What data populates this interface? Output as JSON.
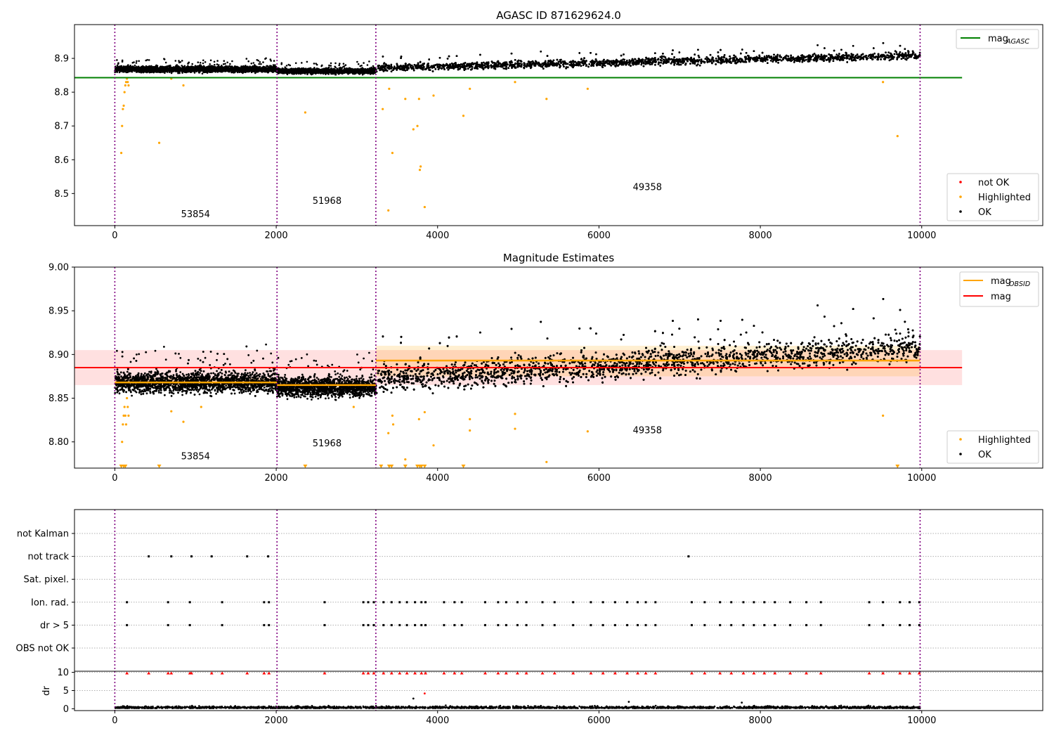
{
  "figure": {
    "background": "#ffffff"
  },
  "chart_data": [
    {
      "id": "p1",
      "type": "scatter",
      "title": "AGASC ID 871629624.0",
      "xlim": [
        -500,
        11500
      ],
      "ylim": [
        8.405,
        9.0
      ],
      "xticks": [
        0,
        2000,
        4000,
        6000,
        8000,
        10000
      ],
      "xtick_labels": [
        "0",
        "2000",
        "4000",
        "6000",
        "8000",
        "10000"
      ],
      "yticks": [
        8.5,
        8.6,
        8.7,
        8.8,
        8.9
      ],
      "ytick_labels": [
        "8.5",
        "8.6",
        "8.7",
        "8.8",
        "8.9"
      ],
      "obsid_boundaries": [
        0,
        2010,
        3235,
        9980
      ],
      "obsid_labels": [
        {
          "text": "53854",
          "x": 1000,
          "y": 8.43
        },
        {
          "text": "51968",
          "x": 2630,
          "y": 8.47
        },
        {
          "text": "49358",
          "x": 6600,
          "y": 8.51
        }
      ],
      "mag_agasc": {
        "y": 8.843,
        "x_range": [
          -500,
          10500
        ],
        "color": "#008000"
      },
      "ok_segments": [
        {
          "x": [
            0,
            2010
          ],
          "y0": 8.868,
          "y1": 8.868,
          "spread": 0.009
        },
        {
          "x": [
            2010,
            3235
          ],
          "y0": 8.863,
          "y1": 8.862,
          "spread": 0.008
        },
        {
          "x": [
            3235,
            9980
          ],
          "y0": 8.872,
          "y1": 8.908,
          "spread": 0.011
        }
      ],
      "highlighted_points": [
        [
          80,
          8.62
        ],
        [
          90,
          8.7
        ],
        [
          100,
          8.75
        ],
        [
          110,
          8.76
        ],
        [
          120,
          8.8
        ],
        [
          130,
          8.82
        ],
        [
          140,
          8.83
        ],
        [
          150,
          8.84
        ],
        [
          160,
          8.83
        ],
        [
          170,
          8.82
        ],
        [
          550,
          8.65
        ],
        [
          700,
          8.84
        ],
        [
          850,
          8.82
        ],
        [
          2360,
          8.74
        ],
        [
          3320,
          8.75
        ],
        [
          3400,
          8.81
        ],
        [
          3390,
          8.45
        ],
        [
          3440,
          8.62
        ],
        [
          3600,
          8.78
        ],
        [
          3700,
          8.69
        ],
        [
          3750,
          8.7
        ],
        [
          3770,
          8.78
        ],
        [
          3780,
          8.57
        ],
        [
          3790,
          8.58
        ],
        [
          3840,
          8.46
        ],
        [
          3950,
          8.79
        ],
        [
          4320,
          8.73
        ],
        [
          4400,
          8.81
        ],
        [
          4960,
          8.83
        ],
        [
          5350,
          8.78
        ],
        [
          5860,
          8.81
        ],
        [
          9520,
          8.83
        ],
        [
          9700,
          8.67
        ]
      ],
      "legend_top": {
        "entries": [
          {
            "label": "mag",
            "sub": "AGASC",
            "color": "#008000"
          }
        ],
        "position": "top-right"
      },
      "legend_bottom": {
        "entries": [
          {
            "label": "not OK",
            "color": "#ff0000"
          },
          {
            "label": "Highlighted",
            "color": "#ffa500"
          },
          {
            "label": "OK",
            "color": "#000000"
          }
        ],
        "position": "bottom-right"
      }
    },
    {
      "id": "p2",
      "type": "scatter",
      "title": "Magnitude Estimates",
      "xlim": [
        -500,
        11500
      ],
      "ylim": [
        8.77,
        9.0
      ],
      "xticks": [
        0,
        2000,
        4000,
        6000,
        8000,
        10000
      ],
      "xtick_labels": [
        "0",
        "2000",
        "4000",
        "6000",
        "8000",
        "10000"
      ],
      "yticks": [
        8.8,
        8.85,
        8.9,
        8.95,
        9.0
      ],
      "ytick_labels": [
        "8.80",
        "8.85",
        "8.90",
        "8.95",
        "9.00"
      ],
      "obsid_boundaries": [
        0,
        2010,
        3235,
        9980
      ],
      "obsid_labels": [
        {
          "text": "53854",
          "x": 1000,
          "y": 8.78
        },
        {
          "text": "51968",
          "x": 2630,
          "y": 8.795
        },
        {
          "text": "49358",
          "x": 6600,
          "y": 8.81
        }
      ],
      "mag_band": {
        "y": 8.885,
        "lo": 8.865,
        "hi": 8.905,
        "x_range": [
          -500,
          10500
        ],
        "color": "#ff0000"
      },
      "mag_obsid": [
        {
          "x": [
            0,
            2010
          ],
          "y": 8.868,
          "lo": 8.863,
          "hi": 8.873
        },
        {
          "x": [
            2010,
            3235
          ],
          "y": 8.865,
          "lo": 8.861,
          "hi": 8.869
        },
        {
          "x": [
            3235,
            9980
          ],
          "y": 8.893,
          "lo": 8.875,
          "hi": 8.91
        }
      ],
      "ok_segments": [
        {
          "x": [
            0,
            2010
          ],
          "y0": 8.868,
          "y1": 8.868,
          "spread": 0.012
        },
        {
          "x": [
            2010,
            3235
          ],
          "y0": 8.863,
          "y1": 8.862,
          "spread": 0.011
        },
        {
          "x": [
            3235,
            9980
          ],
          "y0": 8.872,
          "y1": 8.908,
          "spread": 0.016
        }
      ],
      "highlighted_points": [
        [
          90,
          8.8
        ],
        [
          100,
          8.82
        ],
        [
          110,
          8.83
        ],
        [
          120,
          8.84
        ],
        [
          130,
          8.83
        ],
        [
          140,
          8.82
        ],
        [
          150,
          8.85
        ],
        [
          160,
          8.84
        ],
        [
          170,
          8.83
        ],
        [
          700,
          8.835
        ],
        [
          850,
          8.823
        ],
        [
          1070,
          8.84
        ],
        [
          2960,
          8.84
        ],
        [
          3390,
          8.81
        ],
        [
          3440,
          8.83
        ],
        [
          3450,
          8.82
        ],
        [
          3600,
          8.78
        ],
        [
          3770,
          8.826
        ],
        [
          3840,
          8.834
        ],
        [
          3950,
          8.796
        ],
        [
          4400,
          8.826
        ],
        [
          4400,
          8.813
        ],
        [
          4960,
          8.815
        ],
        [
          4960,
          8.832
        ],
        [
          5350,
          8.777
        ],
        [
          5860,
          8.812
        ],
        [
          9520,
          8.83
        ]
      ],
      "clipped_points": [
        80,
        110,
        130,
        550,
        2360,
        3300,
        3400,
        3430,
        3600,
        3750,
        3780,
        3800,
        3840,
        4320,
        9700
      ],
      "legend_top": {
        "entries": [
          {
            "label": "mag",
            "sub": "OBSID",
            "color": "#ffa500"
          },
          {
            "label": "mag",
            "sub": "",
            "color": "#ff0000"
          }
        ],
        "position": "top-right"
      },
      "legend_bottom": {
        "entries": [
          {
            "label": "Highlighted",
            "color": "#ffa500"
          },
          {
            "label": "OK",
            "color": "#000000"
          }
        ],
        "position": "bottom-right"
      }
    },
    {
      "id": "p3",
      "type": "scatter",
      "xlim": [
        -500,
        11500
      ],
      "categories": [
        "not Kalman",
        "not track",
        "Sat. pixel.",
        "Ion. rad.",
        "dr > 5",
        "OBS not OK"
      ],
      "obsid_boundaries": [
        0,
        2010,
        3235,
        9980
      ],
      "flag_points": {
        "not Kalman": [],
        "not track": [
          420,
          700,
          950,
          1200,
          1640,
          1900,
          7110
        ],
        "Sat. pixel.": [],
        "Ion. rad.": [
          150,
          660,
          930,
          1330,
          1850,
          1910,
          2600,
          3080,
          3140,
          3210,
          3330,
          3430,
          3530,
          3620,
          3720,
          3800,
          3850,
          4080,
          4210,
          4300,
          4590,
          4750,
          4850,
          4990,
          5100,
          5300,
          5450,
          5680,
          5900,
          6050,
          6200,
          6350,
          6480,
          6580,
          6700,
          7150,
          7310,
          7500,
          7640,
          7790,
          7920,
          8050,
          8180,
          8370,
          8570,
          8750,
          9350,
          9520,
          9730,
          9850,
          9970
        ],
        "dr > 5": [
          150,
          660,
          930,
          1330,
          1850,
          1910,
          2600,
          3080,
          3140,
          3210,
          3330,
          3430,
          3530,
          3620,
          3720,
          3800,
          3850,
          4080,
          4210,
          4300,
          4590,
          4750,
          4850,
          4990,
          5100,
          5300,
          5450,
          5680,
          5900,
          6050,
          6200,
          6350,
          6480,
          6580,
          6700,
          7150,
          7310,
          7500,
          7640,
          7790,
          7920,
          8050,
          8180,
          8370,
          8570,
          8750,
          9350,
          9520,
          9730,
          9850,
          9970
        ],
        "OBS not OK": []
      }
    },
    {
      "id": "p4",
      "type": "scatter",
      "ylabel": "dr",
      "xlim": [
        -500,
        11500
      ],
      "ylim": [
        -0.5,
        10.3
      ],
      "yticks": [
        0,
        5,
        10
      ],
      "ytick_labels": [
        "0",
        "5",
        "10"
      ],
      "xticks": [
        0,
        2000,
        4000,
        6000,
        8000,
        10000
      ],
      "xtick_labels": [
        "0",
        "2000",
        "4000",
        "6000",
        "8000",
        "10000"
      ],
      "obsid_boundaries": [
        0,
        2010,
        3235,
        9980
      ],
      "dr_typical": 0.5,
      "dr_outliers": [
        [
          3700,
          2.8
        ],
        [
          3840,
          4.2
        ],
        [
          6370,
          1.9
        ],
        [
          7770,
          1.7
        ]
      ],
      "dr_clipped_red": [
        150,
        420,
        660,
        700,
        930,
        950,
        1200,
        1330,
        1640,
        1850,
        1910,
        2600,
        3080,
        3140,
        3210,
        3330,
        3430,
        3530,
        3620,
        3720,
        3800,
        3850,
        4080,
        4210,
        4300,
        4590,
        4750,
        4850,
        4990,
        5100,
        5300,
        5450,
        5680,
        5900,
        6050,
        6200,
        6350,
        6480,
        6580,
        6700,
        7150,
        7310,
        7500,
        7640,
        7790,
        7920,
        8050,
        8180,
        8370,
        8570,
        8750,
        9350,
        9520,
        9730,
        9850,
        9970
      ]
    }
  ]
}
